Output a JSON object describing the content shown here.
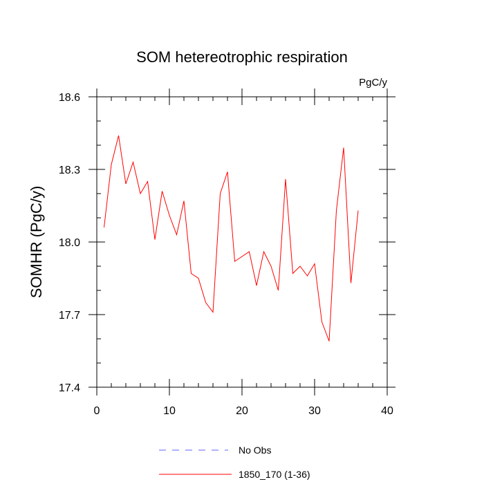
{
  "chart_data": {
    "type": "line",
    "title": "SOM hetereotrophic respiration",
    "units": "PgC/y",
    "ylabel": "SOMHR  (PgC/y)",
    "xlabel": "",
    "xlim": [
      0,
      40
    ],
    "ylim": [
      17.4,
      18.6
    ],
    "xticks": [
      0,
      10,
      20,
      30,
      40
    ],
    "yticks": [
      17.4,
      17.7,
      18.0,
      18.3,
      18.6
    ],
    "xtick_labels": [
      "0",
      "10",
      "20",
      "30",
      "40"
    ],
    "ytick_labels": [
      "17.4",
      "17.7",
      "18.0",
      "18.3",
      "18.6"
    ],
    "grid": false,
    "legend_position": "bottom",
    "series": [
      {
        "name": "No Obs",
        "color": "#6060ff",
        "dash": "dashed",
        "x": [],
        "y": []
      },
      {
        "name": "1850_170 (1-36)",
        "color": "#ff0000",
        "dash": "solid",
        "x": [
          1,
          2,
          3,
          4,
          5,
          6,
          7,
          8,
          9,
          10,
          11,
          12,
          13,
          14,
          15,
          16,
          17,
          18,
          19,
          20,
          21,
          22,
          23,
          24,
          25,
          26,
          27,
          28,
          29,
          30,
          31,
          32,
          33,
          34,
          35,
          36
        ],
        "y": [
          18.06,
          18.32,
          18.44,
          18.24,
          18.33,
          18.2,
          18.25,
          18.01,
          18.21,
          18.11,
          18.03,
          18.17,
          17.87,
          17.85,
          17.75,
          17.71,
          18.2,
          18.29,
          17.92,
          17.94,
          17.96,
          17.82,
          17.96,
          17.9,
          17.8,
          18.26,
          17.87,
          17.9,
          17.86,
          17.91,
          17.67,
          17.59,
          18.13,
          18.39,
          17.83,
          18.13
        ]
      }
    ]
  }
}
